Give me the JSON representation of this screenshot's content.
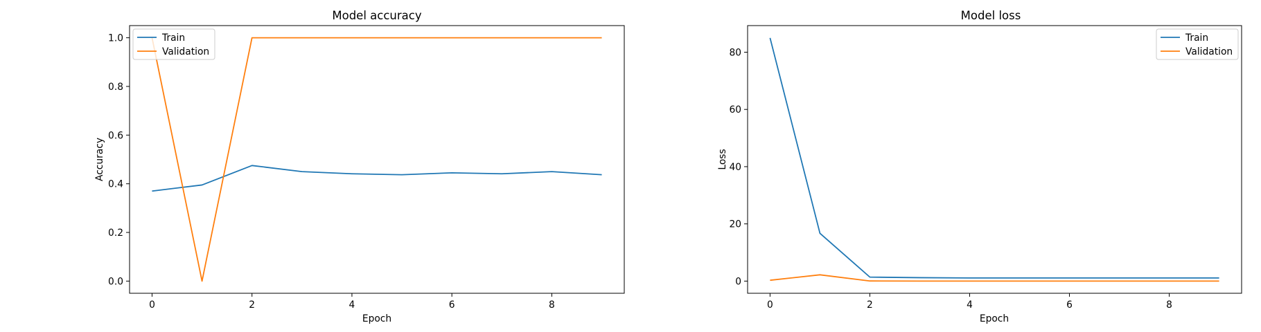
{
  "chart_data": [
    {
      "type": "line",
      "title": "Model accuracy",
      "xlabel": "Epoch",
      "ylabel": "Accuracy",
      "xlim": [
        -0.45,
        9.45
      ],
      "ylim": [
        -0.05,
        1.05
      ],
      "x": [
        0,
        1,
        2,
        3,
        4,
        5,
        6,
        7,
        8,
        9
      ],
      "xticks": [
        0,
        2,
        4,
        6,
        8
      ],
      "xtick_labels": [
        "0",
        "2",
        "4",
        "6",
        "8"
      ],
      "yticks": [
        0.0,
        0.2,
        0.4,
        0.6,
        0.8,
        1.0
      ],
      "ytick_labels": [
        "0.0",
        "0.2",
        "0.4",
        "0.6",
        "0.8",
        "1.0"
      ],
      "grid": false,
      "legend_position": "upper left",
      "series": [
        {
          "name": "Train",
          "color": "#1f77b4",
          "values": [
            0.37,
            0.395,
            0.475,
            0.45,
            0.441,
            0.437,
            0.445,
            0.441,
            0.45,
            0.437
          ]
        },
        {
          "name": "Validation",
          "color": "#ff7f0e",
          "values": [
            1.0,
            0.0,
            1.0,
            1.0,
            1.0,
            1.0,
            1.0,
            1.0,
            1.0,
            1.0
          ]
        }
      ]
    },
    {
      "type": "line",
      "title": "Model loss",
      "xlabel": "Epoch",
      "ylabel": "Loss",
      "xlim": [
        -0.45,
        9.45
      ],
      "ylim": [
        -4.25,
        89.3
      ],
      "x": [
        0,
        1,
        2,
        3,
        4,
        5,
        6,
        7,
        8,
        9
      ],
      "xticks": [
        0,
        2,
        4,
        6,
        8
      ],
      "xtick_labels": [
        "0",
        "2",
        "4",
        "6",
        "8"
      ],
      "yticks": [
        0,
        20,
        40,
        60,
        80
      ],
      "ytick_labels": [
        "0",
        "20",
        "40",
        "60",
        "80"
      ],
      "grid": false,
      "legend_position": "upper right",
      "series": [
        {
          "name": "Train",
          "color": "#1f77b4",
          "values": [
            85.0,
            16.7,
            1.4,
            1.2,
            1.1,
            1.1,
            1.1,
            1.1,
            1.1,
            1.1
          ]
        },
        {
          "name": "Validation",
          "color": "#ff7f0e",
          "values": [
            0.3,
            2.2,
            0.05,
            0.02,
            0.01,
            0.01,
            0.01,
            0.01,
            0.01,
            0.01
          ]
        }
      ]
    }
  ]
}
